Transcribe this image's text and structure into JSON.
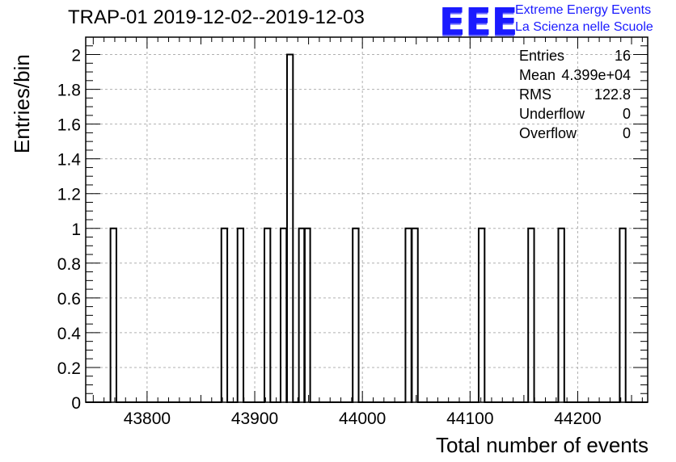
{
  "chart_data": {
    "type": "bar",
    "histogram": true,
    "title": "TRAP-01 2019-12-02--2019-12-03",
    "xlabel": "Total number of events",
    "ylabel": "Entries/bin",
    "xlim": [
      43743,
      44265
    ],
    "ylim": [
      0,
      2.1
    ],
    "bin_width": 5.5,
    "grid": true,
    "x_ticks": [
      43800,
      43900,
      44000,
      44100,
      44200
    ],
    "y_ticks": [
      0,
      0.2,
      0.4,
      0.6,
      0.8,
      1,
      1.2,
      1.4,
      1.6,
      1.8,
      2
    ],
    "y_tick_labels": [
      "0",
      "0.2",
      "0.4",
      "0.6",
      "0.8",
      "1",
      "1.2",
      "1.4",
      "1.6",
      "1.8",
      "2"
    ],
    "x_tick_labels": [
      "43800",
      "43900",
      "44000",
      "44100",
      "44200"
    ],
    "bins": [
      {
        "x": 43766,
        "count": 1
      },
      {
        "x": 43869,
        "count": 1
      },
      {
        "x": 43884,
        "count": 1
      },
      {
        "x": 43909,
        "count": 1
      },
      {
        "x": 43924,
        "count": 1
      },
      {
        "x": 43930,
        "count": 2
      },
      {
        "x": 43941,
        "count": 1
      },
      {
        "x": 43946,
        "count": 1
      },
      {
        "x": 43991,
        "count": 1
      },
      {
        "x": 44040,
        "count": 1
      },
      {
        "x": 44046,
        "count": 1
      },
      {
        "x": 44108,
        "count": 1
      },
      {
        "x": 44154,
        "count": 1
      },
      {
        "x": 44182,
        "count": 1
      },
      {
        "x": 44239,
        "count": 1
      }
    ],
    "stats": [
      {
        "label": "Entries",
        "value": "16"
      },
      {
        "label": "Mean",
        "value": "4.399e+04"
      },
      {
        "label": "RMS",
        "value": "122.8"
      },
      {
        "label": "Underflow",
        "value": "0"
      },
      {
        "label": "Overflow",
        "value": "0"
      }
    ]
  },
  "logo": {
    "mark": "EEE",
    "line1": "Extreme Energy Events",
    "line2": "La Scienza nelle Scuole",
    "color": "#1a1aff"
  }
}
